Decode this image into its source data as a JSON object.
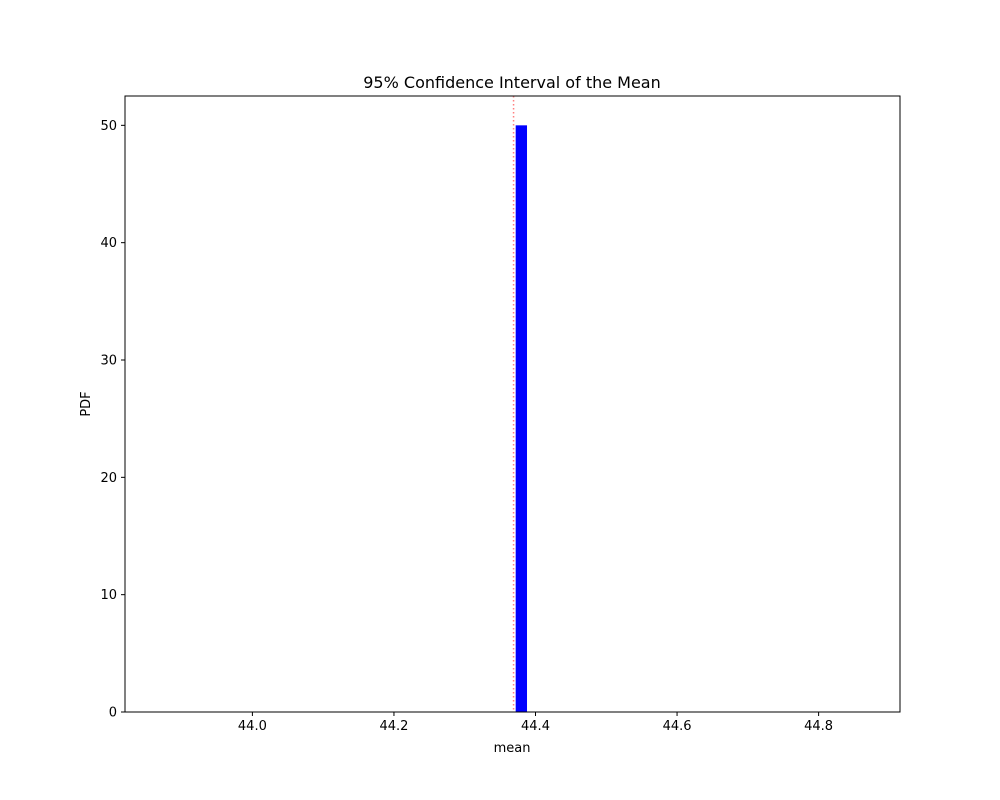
{
  "chart_data": {
    "type": "bar",
    "title": "95% Confidence Interval of the Mean",
    "xlabel": "mean",
    "ylabel": "PDF",
    "xlim": [
      43.82,
      44.915
    ],
    "ylim": [
      0,
      52.5
    ],
    "xticks": [
      44.0,
      44.2,
      44.4,
      44.6,
      44.8
    ],
    "xtick_labels": [
      "44.0",
      "44.2",
      "44.4",
      "44.6",
      "44.8"
    ],
    "yticks": [
      0,
      10,
      20,
      30,
      40,
      50
    ],
    "ytick_labels": [
      "0",
      "10",
      "20",
      "30",
      "40",
      "50"
    ],
    "bins": [
      {
        "x0": 44.372,
        "x1": 44.388,
        "value": 50
      }
    ],
    "reference_lines": [
      {
        "orientation": "vertical",
        "x": 44.369,
        "style": "dotted",
        "color": "#ff7f7f"
      }
    ],
    "grid": false,
    "colors": {
      "bar": "#0000ff",
      "reference_line": "#ff7f7f"
    }
  }
}
